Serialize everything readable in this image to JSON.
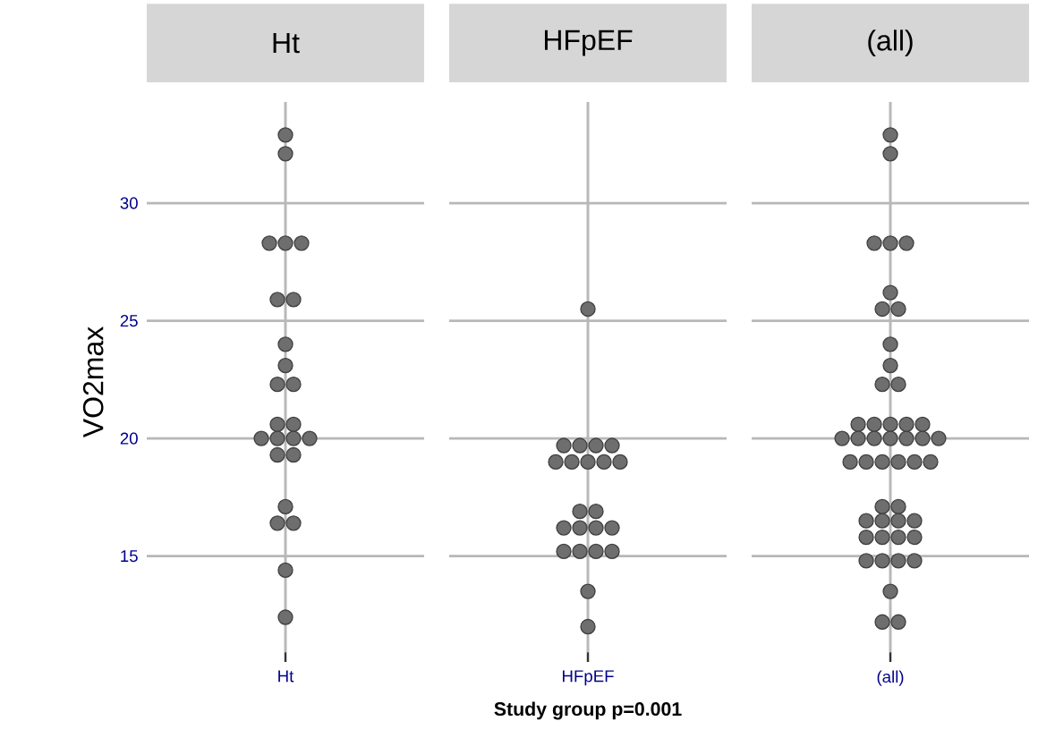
{
  "chart_data": {
    "type": "scatter",
    "categories": [
      "Ht",
      "HFpEF",
      "(all)"
    ],
    "xlabel": "**Study group  p=0.001**",
    "ylabel": "VO2max",
    "ylim": [
      10.5,
      34.3
    ],
    "yticks": [
      15,
      20,
      25,
      30
    ],
    "grid": true,
    "marker": "circle",
    "series": [
      {
        "color": "#6e6e6e",
        "x": [
          "Ht",
          "Ht",
          "Ht",
          "Ht",
          "Ht",
          "Ht",
          "Ht",
          "Ht",
          "Ht",
          "Ht",
          "Ht",
          "Ht",
          "Ht",
          "Ht",
          "Ht",
          "Ht",
          "Ht",
          "Ht",
          "Ht",
          "Ht",
          "Ht",
          "Ht",
          "Ht",
          "Ht",
          "HFpEF",
          "HFpEF",
          "HFpEF",
          "HFpEF",
          "HFpEF",
          "HFpEF",
          "HFpEF",
          "HFpEF",
          "HFpEF",
          "HFpEF",
          "HFpEF",
          "HFpEF",
          "HFpEF",
          "HFpEF",
          "HFpEF",
          "HFpEF",
          "HFpEF",
          "HFpEF",
          "HFpEF",
          "HFpEF",
          "HFpEF",
          "HFpEF",
          "(all)",
          "(all)",
          "(all)",
          "(all)",
          "(all)",
          "(all)",
          "(all)",
          "(all)",
          "(all)",
          "(all)",
          "(all)",
          "(all)",
          "(all)",
          "(all)",
          "(all)",
          "(all)",
          "(all)",
          "(all)",
          "(all)",
          "(all)",
          "(all)",
          "(all)",
          "(all)",
          "(all)",
          "(all)",
          "(all)",
          "(all)",
          "(all)",
          "(all)",
          "(all)",
          "(all)",
          "(all)",
          "(all)",
          "(all)",
          "(all)",
          "(all)",
          "(all)",
          "(all)",
          "(all)",
          "(all)",
          "(all)",
          "(all)",
          "(all)",
          "(all)",
          "(all)",
          "(all)",
          "(all)"
        ],
        "values": [
          32.9,
          32.1,
          28.3,
          28.3,
          28.3,
          25.9,
          25.9,
          24.0,
          23.1,
          22.3,
          22.3,
          20.6,
          20.6,
          20.0,
          20.0,
          20.0,
          20.0,
          19.3,
          19.3,
          17.1,
          16.4,
          16.4,
          14.4,
          12.4,
          25.5,
          19.7,
          19.7,
          19.7,
          19.7,
          19.0,
          19.0,
          19.0,
          19.0,
          19.0,
          16.9,
          16.9,
          16.2,
          16.2,
          16.2,
          16.2,
          15.2,
          15.2,
          15.2,
          15.2,
          13.5,
          12.0,
          32.9,
          32.1,
          28.3,
          28.3,
          28.3,
          26.2,
          25.5,
          25.5,
          24.0,
          23.1,
          22.3,
          22.3,
          20.6,
          20.6,
          20.6,
          20.6,
          20.6,
          20.0,
          20.0,
          20.0,
          20.0,
          20.0,
          20.0,
          20.0,
          19.0,
          19.0,
          19.0,
          19.0,
          19.0,
          19.0,
          17.1,
          17.1,
          16.5,
          16.5,
          16.5,
          16.5,
          15.8,
          15.8,
          15.8,
          15.8,
          14.8,
          14.8,
          14.8,
          14.8,
          13.5,
          12.2,
          12.2
        ]
      }
    ]
  }
}
